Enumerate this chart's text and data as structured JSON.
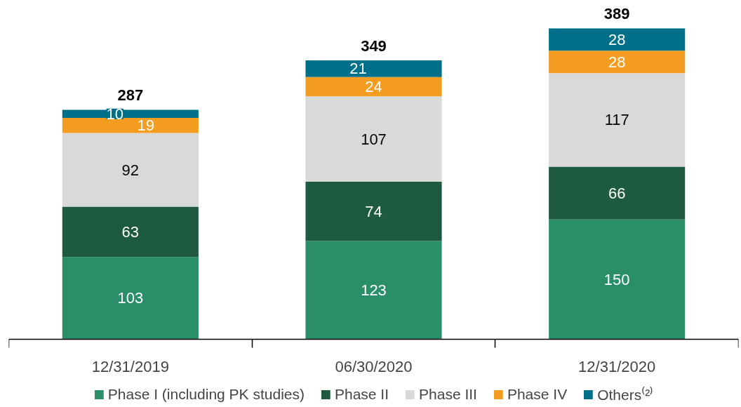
{
  "chart_data": {
    "type": "bar",
    "stacked": true,
    "data_labels": true,
    "legend": "bottom",
    "grid": false,
    "categories": [
      "12/31/2019",
      "06/30/2020",
      "12/31/2020"
    ],
    "series": [
      {
        "name": "Phase I (including PK studies)",
        "color": "#2a8f68",
        "values": [
          103,
          123,
          150
        ]
      },
      {
        "name": "Phase II",
        "color": "#1e5a40",
        "values": [
          63,
          74,
          66
        ]
      },
      {
        "name": "Phase III",
        "color": "#d9d9d9",
        "values": [
          92,
          107,
          117
        ]
      },
      {
        "name": "Phase IV",
        "color": "#f39c1f",
        "values": [
          19,
          24,
          28
        ]
      },
      {
        "name": "Others⁽²⁾",
        "color": "#00708a",
        "values": [
          10,
          21,
          28
        ]
      }
    ],
    "totals": [
      "287",
      "349",
      "389"
    ]
  }
}
